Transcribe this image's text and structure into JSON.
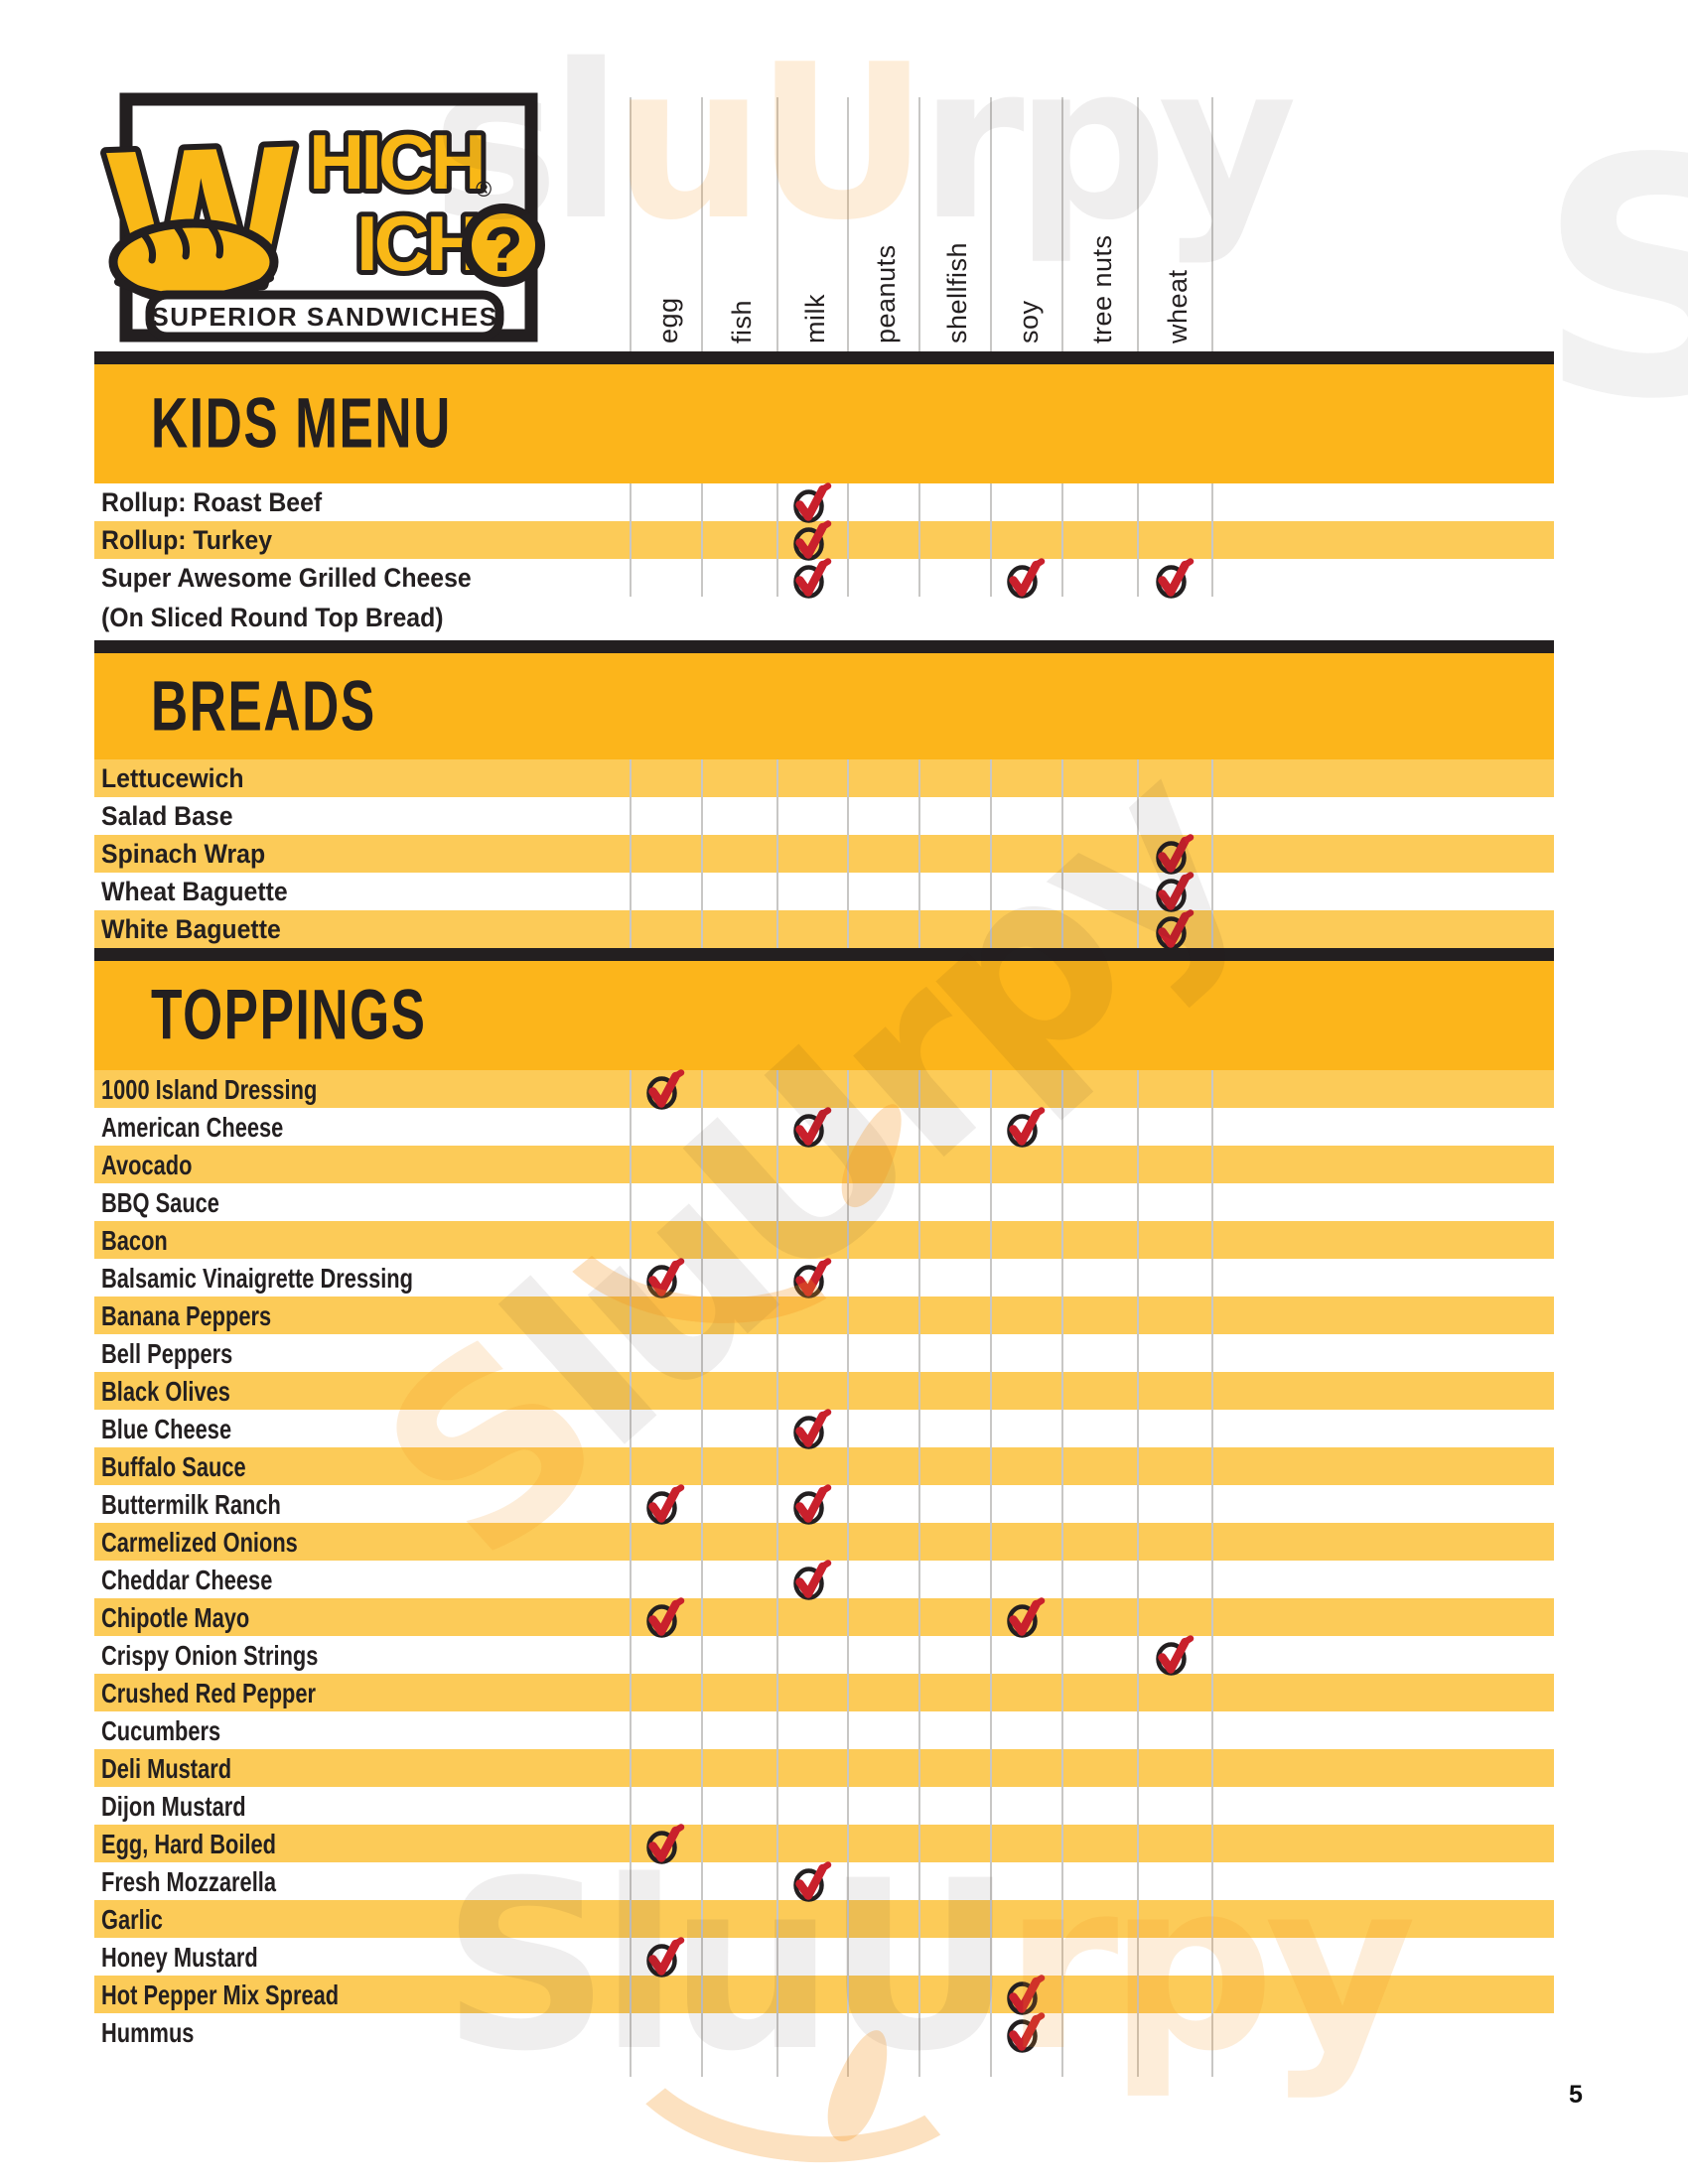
{
  "page": {
    "number": "5"
  },
  "logo": {
    "big_letter": "W",
    "word_top_rest": "HICH",
    "word_bottom_rest": "ICH",
    "registered_mark": "®",
    "question_mark": "?",
    "tagline": "SUPERIOR SANDWICHES"
  },
  "allergen_columns": [
    "egg",
    "fish",
    "milk",
    "peanuts",
    "shellfish",
    "soy",
    "tree nuts",
    "wheat"
  ],
  "sections": [
    {
      "title": "KIDS MENU",
      "first_row_yellow": false,
      "rows": [
        {
          "name": "Rollup: Roast Beef",
          "checks": [
            "milk"
          ]
        },
        {
          "name": "Rollup: Turkey",
          "checks": [
            "milk"
          ]
        },
        {
          "name": "Super Awesome Grilled Cheese",
          "continuation": "(On Sliced Round Top Bread)",
          "checks": [
            "milk",
            "soy",
            "wheat"
          ]
        }
      ]
    },
    {
      "title": "BREADS",
      "first_row_yellow": true,
      "rows": [
        {
          "name": "Lettucewich",
          "checks": []
        },
        {
          "name": "Salad Base",
          "checks": []
        },
        {
          "name": "Spinach Wrap",
          "checks": [
            "wheat"
          ]
        },
        {
          "name": "Wheat Baguette",
          "checks": [
            "wheat"
          ]
        },
        {
          "name": "White Baguette",
          "checks": [
            "wheat"
          ]
        }
      ]
    },
    {
      "title": "TOPPINGS",
      "first_row_yellow": true,
      "rows": [
        {
          "name": "1000 Island Dressing",
          "checks": [
            "egg"
          ]
        },
        {
          "name": "American Cheese",
          "checks": [
            "milk",
            "soy"
          ]
        },
        {
          "name": "Avocado",
          "checks": []
        },
        {
          "name": "BBQ Sauce",
          "checks": []
        },
        {
          "name": "Bacon",
          "checks": []
        },
        {
          "name": "Balsamic Vinaigrette Dressing",
          "checks": [
            "egg",
            "milk"
          ]
        },
        {
          "name": "Banana Peppers",
          "checks": []
        },
        {
          "name": "Bell Peppers",
          "checks": []
        },
        {
          "name": "Black Olives",
          "checks": []
        },
        {
          "name": "Blue Cheese",
          "checks": [
            "milk"
          ]
        },
        {
          "name": "Buffalo Sauce",
          "checks": []
        },
        {
          "name": "Buttermilk Ranch",
          "checks": [
            "egg",
            "milk"
          ]
        },
        {
          "name": "Carmelized Onions",
          "checks": []
        },
        {
          "name": "Cheddar Cheese",
          "checks": [
            "milk"
          ]
        },
        {
          "name": "Chipotle Mayo",
          "checks": [
            "egg",
            "soy"
          ]
        },
        {
          "name": "Crispy Onion Strings",
          "checks": [
            "wheat"
          ]
        },
        {
          "name": "Crushed Red Pepper",
          "checks": []
        },
        {
          "name": "Cucumbers",
          "checks": []
        },
        {
          "name": "Deli Mustard",
          "checks": []
        },
        {
          "name": "Dijon Mustard",
          "checks": []
        },
        {
          "name": "Egg, Hard Boiled",
          "checks": [
            "egg"
          ]
        },
        {
          "name": "Fresh Mozzarella",
          "checks": [
            "milk"
          ]
        },
        {
          "name": "Garlic",
          "checks": []
        },
        {
          "name": "Honey Mustard",
          "checks": [
            "egg"
          ]
        },
        {
          "name": "Hot Pepper Mix Spread",
          "checks": [
            "soy"
          ]
        },
        {
          "name": "Hummus",
          "checks": [
            "soy"
          ]
        }
      ]
    }
  ],
  "watermark": {
    "text": "SluUrpy",
    "instances": [
      {
        "part1": "sl",
        "part2": "uU",
        "part3": "rpy"
      },
      {
        "part1": "S",
        "part2": "luU",
        "part3": "rpy"
      },
      {
        "part1": "SluU",
        "part2": "rpy",
        "part3": ""
      }
    ],
    "edge_letter": "S"
  },
  "colors": {
    "band_yellow": "#fcb51b",
    "row_yellow": "#fccb58",
    "logo_yellow": "#f9b817",
    "section_black": "#231f20",
    "text_black": "#231f20",
    "grid_gray": "#c8c7c5",
    "check_red": "#c9202c",
    "watermark_orange": "#f6931e",
    "watermark_gray": "#9c9a9a"
  }
}
